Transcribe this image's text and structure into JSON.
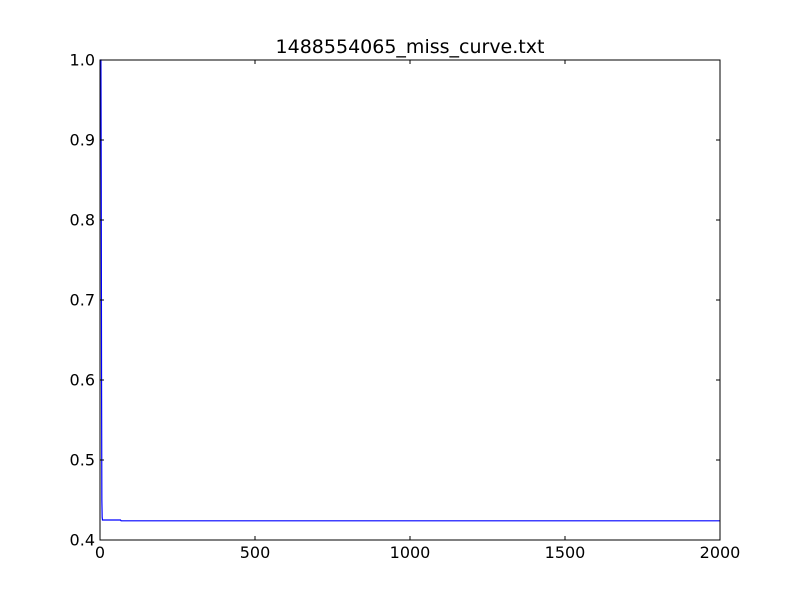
{
  "chart_data": {
    "type": "line",
    "title": "1488554065_miss_curve.txt",
    "xlabel": "",
    "ylabel": "",
    "xlim": [
      0,
      2000
    ],
    "ylim": [
      0.4,
      1.0
    ],
    "x_ticks": [
      0,
      500,
      1000,
      1500,
      2000
    ],
    "x_tick_labels": [
      "0",
      "500",
      "1000",
      "1500",
      "2000"
    ],
    "y_ticks": [
      0.4,
      0.5,
      0.6,
      0.7,
      0.8,
      0.9,
      1.0
    ],
    "y_tick_labels": [
      "0.4",
      "0.5",
      "0.6",
      "0.7",
      "0.8",
      "0.9",
      "1.0"
    ],
    "grid": false,
    "series": [
      {
        "color": "#0000ff",
        "x": [
          1,
          2,
          3,
          4,
          5,
          6,
          7,
          8,
          10,
          20,
          40,
          60,
          66,
          68,
          70,
          100,
          500,
          1000,
          1500,
          2000
        ],
        "y": [
          1.0,
          1.0,
          1.0,
          0.85,
          0.6,
          0.45,
          0.428,
          0.425,
          0.425,
          0.425,
          0.425,
          0.425,
          0.425,
          0.424,
          0.424,
          0.424,
          0.424,
          0.424,
          0.424,
          0.424
        ]
      }
    ]
  }
}
